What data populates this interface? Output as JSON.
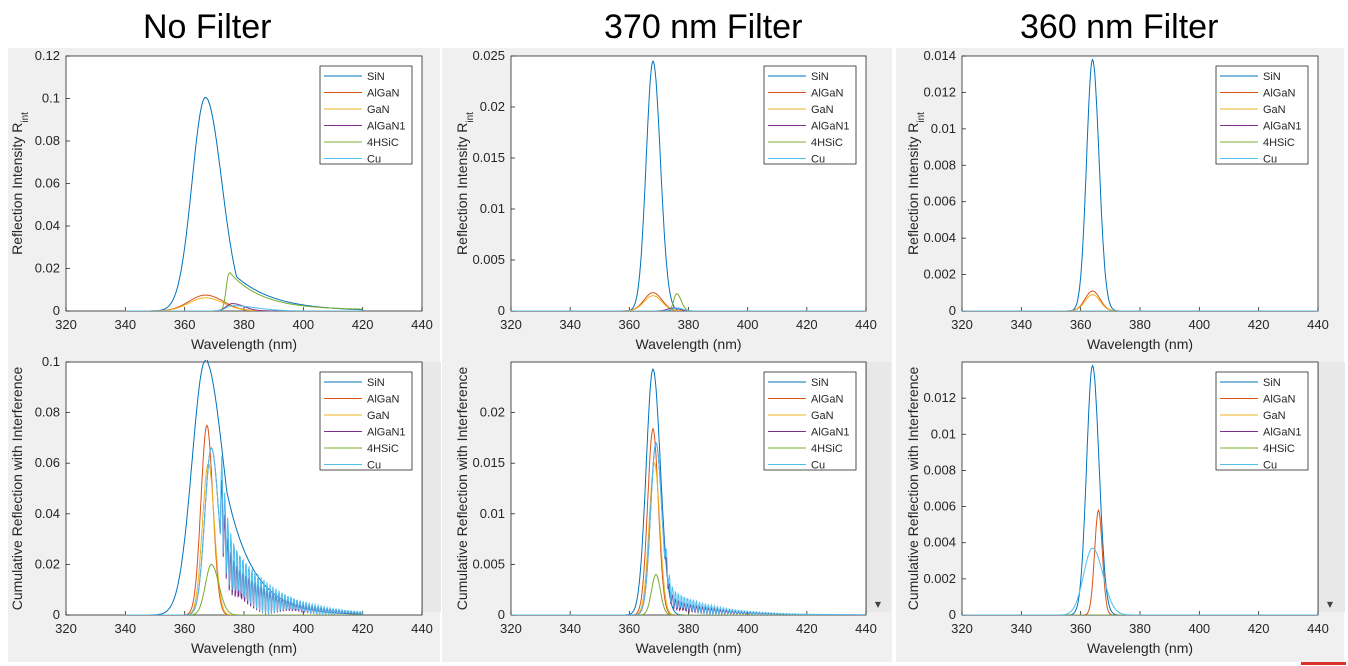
{
  "column_titles": [
    "No Filter",
    "370 nm Filter",
    "360 nm Filter"
  ],
  "colors": {
    "SiN": "#0072BD",
    "AlGaN": "#D95319",
    "GaN": "#EDB120",
    "AlGaN1": "#7E2F8E",
    "4HSiC": "#77AC30",
    "Cu": "#4DBEEE"
  },
  "chart_data": [
    {
      "type": "line",
      "panel": "No Filter - Reflection Intensity",
      "xlabel": "Wavelength (nm)",
      "ylabel": "Reflection Intensity R",
      "ylabel_sub": "int",
      "xlim": [
        320,
        440
      ],
      "ylim": [
        0,
        0.12
      ],
      "xticks": [
        "320",
        "340",
        "360",
        "380",
        "400",
        "420",
        "440"
      ],
      "yticks": [
        "0",
        "0.02",
        "0.04",
        "0.06",
        "0.08",
        "0.1",
        "0.12"
      ],
      "grid": false,
      "legend_position": "top-right",
      "series": [
        {
          "name": "SiN",
          "peak": 367,
          "amp": 0.1005,
          "wl": 4.5,
          "wr": 5.5,
          "tail": 0.0,
          "x0": 340,
          "x1": 420
        },
        {
          "name": "AlGaN",
          "peak": 367,
          "amp": 0.0075,
          "wl": 5.5,
          "wr": 6.0,
          "x0": 340,
          "x1": 420
        },
        {
          "name": "GaN",
          "peak": 367,
          "amp": 0.0062,
          "wl": 5.5,
          "wr": 6.0,
          "x0": 340,
          "x1": 420
        },
        {
          "name": "AlGaN1",
          "peak": 376,
          "amp": 0.0035,
          "wl": 2.0,
          "wr": 4.0,
          "x0": 340,
          "x1": 420
        },
        {
          "name": "4HSiC",
          "peak": 375,
          "amp": 0.0178,
          "wl": 1.0,
          "wr": 10.0,
          "x0": 340,
          "x1": 420
        },
        {
          "name": "Cu",
          "peak": 376,
          "amp": 0.0025,
          "wl": 2.0,
          "wr": 8.0,
          "x0": 340,
          "x1": 420
        }
      ]
    },
    {
      "type": "line",
      "panel": "370 nm Filter - Reflection Intensity",
      "xlabel": "Wavelength (nm)",
      "ylabel": "Reflection Intensity R",
      "ylabel_sub": "int",
      "xlim": [
        320,
        440
      ],
      "ylim": [
        0,
        0.025
      ],
      "xticks": [
        "320",
        "340",
        "360",
        "380",
        "400",
        "420",
        "440"
      ],
      "yticks": [
        "0",
        "0.005",
        "0.01",
        "0.015",
        "0.02",
        "0.025"
      ],
      "grid": false,
      "legend_position": "top-right",
      "series": [
        {
          "name": "SiN",
          "peak": 368,
          "amp": 0.0245,
          "wl": 2.3,
          "wr": 2.5,
          "x0": 320,
          "x1": 440
        },
        {
          "name": "AlGaN",
          "peak": 368,
          "amp": 0.0018,
          "wl": 3.0,
          "wr": 3.0,
          "x0": 320,
          "x1": 440
        },
        {
          "name": "GaN",
          "peak": 368,
          "amp": 0.0015,
          "wl": 3.0,
          "wr": 3.0,
          "x0": 320,
          "x1": 440
        },
        {
          "name": "AlGaN1",
          "peak": 375,
          "amp": 0.0003,
          "wl": 2.0,
          "wr": 2.0,
          "x0": 320,
          "x1": 440
        },
        {
          "name": "4HSiC",
          "peak": 376,
          "amp": 0.0017,
          "wl": 1.0,
          "wr": 1.5,
          "x0": 320,
          "x1": 440
        },
        {
          "name": "Cu",
          "peak": 376,
          "amp": 0.0003,
          "wl": 1.5,
          "wr": 2.0,
          "x0": 320,
          "x1": 440
        }
      ]
    },
    {
      "type": "line",
      "panel": "360 nm Filter - Reflection Intensity",
      "xlabel": "Wavelength (nm)",
      "ylabel": "Reflection Intensity R",
      "ylabel_sub": "int",
      "xlim": [
        320,
        440
      ],
      "ylim": [
        0,
        0.014
      ],
      "xticks": [
        "320",
        "340",
        "360",
        "380",
        "400",
        "420",
        "440"
      ],
      "yticks": [
        "0",
        "0.002",
        "0.004",
        "0.006",
        "0.008",
        "0.01",
        "0.012",
        "0.014"
      ],
      "grid": false,
      "legend_position": "top-right",
      "series": [
        {
          "name": "SiN",
          "peak": 364,
          "amp": 0.0138,
          "wl": 2.0,
          "wr": 2.2,
          "x0": 320,
          "x1": 440
        },
        {
          "name": "AlGaN",
          "peak": 364,
          "amp": 0.0011,
          "wl": 2.5,
          "wr": 2.5,
          "x0": 320,
          "x1": 440
        },
        {
          "name": "GaN",
          "peak": 364,
          "amp": 0.0009,
          "wl": 2.5,
          "wr": 2.5,
          "x0": 320,
          "x1": 440
        },
        {
          "name": "AlGaN1",
          "peak": 364,
          "amp": 0.0,
          "wl": 2.0,
          "wr": 2.0,
          "x0": 320,
          "x1": 440
        },
        {
          "name": "4HSiC",
          "peak": 364,
          "amp": 0.0,
          "wl": 2.0,
          "wr": 2.0,
          "x0": 320,
          "x1": 440
        },
        {
          "name": "Cu",
          "peak": 364,
          "amp": 0.0,
          "wl": 2.0,
          "wr": 2.0,
          "x0": 320,
          "x1": 440
        }
      ]
    },
    {
      "type": "line",
      "panel": "No Filter - Cumulative Reflection with Interference",
      "xlabel": "Wavelength (nm)",
      "ylabel": "Cumulative Reflection with Interference",
      "xlim": [
        320,
        440
      ],
      "ylim": [
        0,
        0.1
      ],
      "xticks": [
        "320",
        "340",
        "360",
        "380",
        "400",
        "420",
        "440"
      ],
      "yticks": [
        "0",
        "0.02",
        "0.04",
        "0.06",
        "0.08",
        "0.1"
      ],
      "grid": false,
      "legend_position": "top-right",
      "series": [
        {
          "name": "SiN",
          "peak": 367,
          "amp": 0.1005,
          "wl": 4.5,
          "wr": 6.0,
          "x0": 340,
          "x1": 420
        },
        {
          "name": "AlGaN",
          "peak": 367.5,
          "amp": 0.075,
          "wl": 2.0,
          "wr": 2.0,
          "x0": 340,
          "x1": 420
        },
        {
          "name": "GaN",
          "peak": 368,
          "amp": 0.06,
          "wl": 2.0,
          "wr": 2.0,
          "x0": 340,
          "x1": 420
        },
        {
          "name": "AlGaN1",
          "peak": 369,
          "amp": 0.066,
          "wl": 2.2,
          "wr": 2.5,
          "osc": 0.03,
          "x0": 340,
          "x1": 420
        },
        {
          "name": "4HSiC",
          "peak": 369,
          "amp": 0.02,
          "wl": 2.0,
          "wr": 2.5,
          "x0": 340,
          "x1": 420
        },
        {
          "name": "Cu",
          "peak": 369,
          "amp": 0.066,
          "wl": 2.2,
          "wr": 2.5,
          "osc": 0.04,
          "x0": 340,
          "x1": 420
        }
      ]
    },
    {
      "type": "line",
      "panel": "370 nm Filter - Cumulative Reflection with Interference",
      "xlabel": "Wavelength (nm)",
      "ylabel": "Cumulative Reflection with Interference",
      "xlim": [
        320,
        440
      ],
      "ylim": [
        0,
        0.025
      ],
      "xticks": [
        "320",
        "340",
        "360",
        "380",
        "400",
        "420",
        "440"
      ],
      "yticks": [
        "0",
        "0.005",
        "0.01",
        "0.015",
        "0.02"
      ],
      "grid": false,
      "legend_position": "top-right",
      "series": [
        {
          "name": "SiN",
          "peak": 368,
          "amp": 0.0243,
          "wl": 2.3,
          "wr": 2.5,
          "x0": 320,
          "x1": 440
        },
        {
          "name": "AlGaN",
          "peak": 368,
          "amp": 0.0184,
          "wl": 1.8,
          "wr": 1.8,
          "x0": 320,
          "x1": 440
        },
        {
          "name": "GaN",
          "peak": 368.5,
          "amp": 0.015,
          "wl": 1.8,
          "wr": 1.8,
          "x0": 320,
          "x1": 440
        },
        {
          "name": "AlGaN1",
          "peak": 369,
          "amp": 0.017,
          "wl": 1.8,
          "wr": 2.0,
          "osc": 0.002,
          "x0": 320,
          "x1": 440
        },
        {
          "name": "4HSiC",
          "peak": 369,
          "amp": 0.004,
          "wl": 1.5,
          "wr": 1.5,
          "x0": 320,
          "x1": 440
        },
        {
          "name": "Cu",
          "peak": 369,
          "amp": 0.017,
          "wl": 1.8,
          "wr": 2.0,
          "osc": 0.003,
          "x0": 320,
          "x1": 440
        }
      ]
    },
    {
      "type": "line",
      "panel": "360 nm Filter - Cumulative Reflection with Interference",
      "xlabel": "Wavelength (nm)",
      "ylabel": "Cumulative Reflection with Interference",
      "xlim": [
        320,
        440
      ],
      "ylim": [
        0,
        0.014
      ],
      "xticks": [
        "320",
        "340",
        "360",
        "380",
        "400",
        "420",
        "440"
      ],
      "yticks": [
        "0",
        "0.002",
        "0.004",
        "0.006",
        "0.008",
        "0.01",
        "0.012"
      ],
      "grid": false,
      "legend_position": "top-right",
      "series": [
        {
          "name": "SiN",
          "peak": 364,
          "amp": 0.0138,
          "wl": 2.0,
          "wr": 2.2,
          "x0": 320,
          "x1": 440
        },
        {
          "name": "AlGaN",
          "peak": 366,
          "amp": 0.0058,
          "wl": 1.3,
          "wr": 1.3,
          "x0": 320,
          "x1": 440
        },
        {
          "name": "GaN",
          "peak": 366,
          "amp": 0.0,
          "wl": 1.5,
          "wr": 1.5,
          "x0": 320,
          "x1": 440
        },
        {
          "name": "AlGaN1",
          "peak": 366,
          "amp": 0.0,
          "wl": 1.5,
          "wr": 1.5,
          "x0": 320,
          "x1": 440
        },
        {
          "name": "4HSiC",
          "peak": 366,
          "amp": 0.0,
          "wl": 1.5,
          "wr": 1.5,
          "x0": 320,
          "x1": 440
        },
        {
          "name": "Cu",
          "peak": 364,
          "amp": 0.0037,
          "wl": 3.0,
          "wr": 3.5,
          "x0": 320,
          "x1": 440
        }
      ]
    }
  ],
  "legend_labels": [
    "SiN",
    "AlGaN",
    "GaN",
    "AlGaN1",
    "4HSiC",
    "Cu"
  ]
}
